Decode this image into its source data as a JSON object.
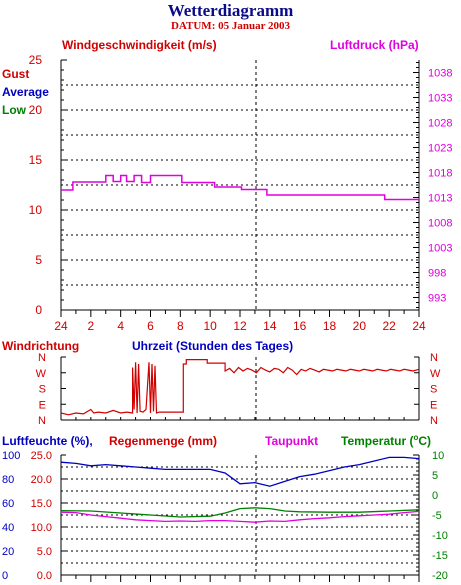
{
  "title": "Wetterdiagramm",
  "subtitle": "DATUM: 05 Januar 2003",
  "colors": {
    "red": "#d00000",
    "blue": "#0000c0",
    "green": "#008000",
    "magenta": "#e000e0",
    "axis": "#000000"
  },
  "chart_data": [
    {
      "type": "line",
      "name": "wind-pressure",
      "left_label": "Windgeschwindigkeit (m/s)",
      "right_label": "Luftdruck (hPa)",
      "legend": [
        "Gust",
        "Average",
        "Low"
      ],
      "ylim_left": [
        0,
        25
      ],
      "yticks_left": [
        "0",
        "5",
        "10",
        "15",
        "20",
        "25"
      ],
      "ylim_right": [
        990.5,
        1040.5
      ],
      "yticks_right": [
        "993",
        "998",
        "1003",
        "1008",
        "1013",
        "1018",
        "1023",
        "1028",
        "1033",
        "1038"
      ],
      "xticks": [
        "24",
        "2",
        "4",
        "6",
        "8",
        "10",
        "12",
        "14",
        "16",
        "18",
        "20",
        "22",
        "24"
      ],
      "grid": true,
      "series": [
        {
          "name": "Luftdruck (hPa)",
          "color": "#e000e0",
          "x": [
            0,
            0.8,
            0.8,
            3.0,
            3.0,
            3.5,
            3.5,
            4.0,
            4.0,
            4.4,
            4.4,
            4.9,
            4.9,
            5.4,
            5.4,
            6.0,
            6.0,
            8.1,
            8.1,
            10.3,
            10.3,
            12.1,
            12.1,
            13.8,
            13.8,
            21.7,
            21.7,
            24
          ],
          "y": [
            1014.5,
            1014.5,
            1016.1,
            1016.1,
            1017.4,
            1017.4,
            1016.2,
            1016.2,
            1017.4,
            1017.4,
            1016.2,
            1016.2,
            1017.4,
            1017.4,
            1016.0,
            1016.0,
            1017.4,
            1017.4,
            1016.0,
            1016.0,
            1015.1,
            1015.1,
            1014.6,
            1014.6,
            1013.5,
            1013.5,
            1012.6,
            1012.6
          ]
        }
      ]
    },
    {
      "type": "line",
      "name": "wind-direction",
      "left_label": "Windrichtung",
      "x_label": "Uhrzeit (Stunden des Tages)",
      "yticks_left": [
        "N",
        "W",
        "S",
        "E",
        "N"
      ],
      "yticks_right": [
        "N",
        "W",
        "S",
        "E",
        "N"
      ],
      "xlim": [
        0,
        24
      ],
      "series": [
        {
          "name": "Windrichtung",
          "color": "#d00000",
          "x": [
            0,
            0.5,
            1.0,
            1.5,
            2.0,
            2.2,
            2.5,
            3.0,
            3.5,
            4.0,
            4.4,
            4.8,
            4.8,
            4.9,
            5.0,
            5.1,
            5.2,
            5.3,
            5.5,
            5.7,
            5.9,
            6.0,
            6.1,
            6.2,
            6.3,
            6.4,
            6.6,
            8.2,
            8.2,
            8.4,
            8.4,
            9.8,
            9.8,
            11.0,
            11.0,
            11.3,
            11.6,
            11.9,
            12.2,
            12.5,
            12.8,
            13.1,
            13.4,
            13.7,
            14.0,
            14.3,
            14.6,
            14.9,
            15.2,
            15.5,
            15.8,
            16.1,
            16.4,
            16.7,
            17.0,
            17.3,
            17.6,
            17.9,
            18.2,
            18.5,
            18.8,
            19.1,
            19.4,
            19.7,
            20.0,
            20.3,
            20.6,
            20.9,
            21.2,
            21.5,
            21.8,
            22.1,
            22.4,
            22.7,
            23.0,
            23.3,
            23.6,
            24
          ],
          "y": [
            40,
            30,
            40,
            35,
            60,
            40,
            45,
            40,
            55,
            40,
            45,
            40,
            300,
            60,
            330,
            40,
            320,
            50,
            45,
            60,
            330,
            40,
            320,
            50,
            310,
            40,
            45,
            45,
            320,
            320,
            345,
            345,
            325,
            325,
            280,
            295,
            270,
            300,
            280,
            295,
            285,
            270,
            300,
            285,
            275,
            295,
            290,
            270,
            300,
            285,
            260,
            290,
            280,
            295,
            285,
            275,
            290,
            285,
            280,
            290,
            285,
            280,
            290,
            285,
            280,
            290,
            285,
            280,
            290,
            285,
            280,
            290,
            285,
            280,
            290,
            285,
            280,
            290
          ]
        }
      ]
    },
    {
      "type": "line",
      "name": "humidity-temperature",
      "left_labels": [
        "Luftfeuchte (%),",
        "Regenmenge (mm)"
      ],
      "right_labels": [
        "Taupunkt",
        "Temperatur (",
        "C)"
      ],
      "yticks_left_humidity": [
        "0",
        "20",
        "40",
        "60",
        "80",
        "100"
      ],
      "yticks_left_rain": [
        "0.0",
        "5.0",
        "10.0",
        "15.0",
        "20.0",
        "25.0"
      ],
      "yticks_right": [
        "-20",
        "-15",
        "-10",
        "-5",
        "0",
        "5",
        "10"
      ],
      "ylim_left": [
        0,
        100
      ],
      "ylim_right": [
        -20,
        10
      ],
      "grid": true,
      "series": [
        {
          "name": "Luftfeuchte (%)",
          "color": "#0000c0",
          "x": [
            0,
            1,
            2,
            3,
            4,
            5,
            6,
            7,
            8,
            9,
            10,
            11,
            12,
            13,
            14,
            15,
            16,
            17,
            18,
            19,
            20,
            21,
            22,
            23,
            24
          ],
          "y": [
            94,
            93,
            91,
            92,
            91,
            90,
            89,
            88,
            88,
            88,
            88,
            85,
            76,
            77,
            74,
            78,
            82,
            84,
            87,
            90,
            92,
            95,
            98,
            98,
            97
          ]
        },
        {
          "name": "Temperatur",
          "color": "#008000",
          "x": [
            0,
            2,
            4,
            6,
            8,
            10,
            11,
            12,
            13,
            14,
            15,
            16,
            18,
            20,
            22,
            24
          ],
          "y": [
            -3.9,
            -4.0,
            -4.5,
            -5.0,
            -5.5,
            -5.3,
            -4.5,
            -3.4,
            -3.2,
            -3.4,
            -4.0,
            -4.2,
            -4.3,
            -4.3,
            -4.0,
            -3.7
          ]
        },
        {
          "name": "Taupunkt",
          "color": "#e000e0",
          "x": [
            0,
            1,
            2,
            3,
            4,
            5,
            6,
            7,
            8,
            9,
            10,
            11,
            12,
            13,
            14,
            15,
            16,
            17,
            18,
            19,
            20,
            21,
            22,
            23,
            24
          ],
          "y": [
            -4.3,
            -4.4,
            -5.0,
            -5.4,
            -5.8,
            -6.2,
            -6.4,
            -6.6,
            -6.5,
            -6.6,
            -6.4,
            -6.4,
            -6.6,
            -6.8,
            -6.5,
            -6.6,
            -6.2,
            -5.9,
            -5.7,
            -5.4,
            -5.2,
            -5.0,
            -4.8,
            -4.4,
            -4.1
          ]
        }
      ]
    }
  ]
}
